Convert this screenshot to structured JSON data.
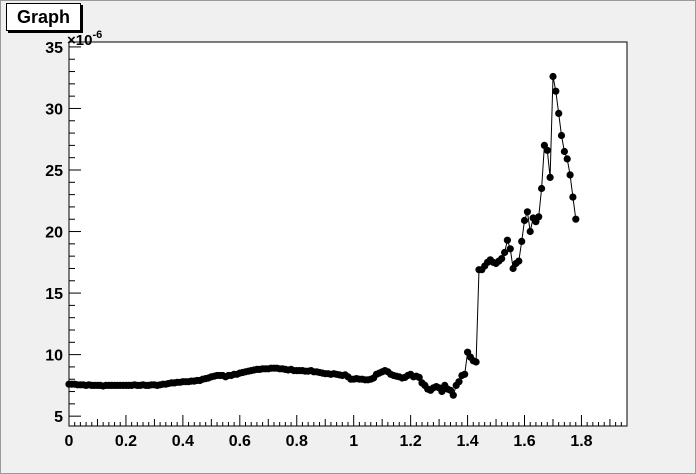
{
  "window": {
    "title": "Graph"
  },
  "chart_data": {
    "type": "line",
    "title": "Graph",
    "xlim": [
      0,
      1.96
    ],
    "ylim": [
      4.2,
      35.4
    ],
    "y_multiplier_label": "×10",
    "y_multiplier_exp": "-6",
    "x_ticks": [
      0,
      0.2,
      0.4,
      0.6,
      0.8,
      1,
      1.2,
      1.4,
      1.6,
      1.8
    ],
    "x_tick_labels": [
      "0",
      "0.2",
      "0.4",
      "0.6",
      "0.8",
      "1",
      "1.2",
      "1.4",
      "1.6",
      "1.8"
    ],
    "y_ticks": [
      5,
      10,
      15,
      20,
      25,
      30,
      35
    ],
    "y_tick_labels": [
      "5",
      "10",
      "15",
      "20",
      "25",
      "30",
      "35"
    ],
    "grid": false,
    "marker": "filled-circle",
    "colors": {
      "line": "#000000",
      "marker": "#000000",
      "frame": "#000000",
      "plot_bg": "#ffffff",
      "canvas_bg": "#f0f0f0"
    },
    "series": [
      {
        "x": [
          0.0,
          0.01,
          0.02,
          0.03,
          0.04,
          0.05,
          0.06,
          0.07,
          0.08,
          0.09,
          0.1,
          0.11,
          0.12,
          0.13,
          0.14,
          0.15,
          0.16,
          0.17,
          0.18,
          0.19,
          0.2,
          0.21,
          0.22,
          0.23,
          0.24,
          0.25,
          0.26,
          0.27,
          0.28,
          0.29,
          0.3,
          0.31,
          0.32,
          0.33,
          0.34,
          0.35,
          0.36,
          0.37,
          0.38,
          0.39,
          0.4,
          0.41,
          0.42,
          0.43,
          0.44,
          0.45,
          0.46,
          0.47,
          0.48,
          0.49,
          0.5,
          0.51,
          0.52,
          0.53,
          0.54,
          0.55,
          0.56,
          0.57,
          0.58,
          0.59,
          0.6,
          0.61,
          0.62,
          0.63,
          0.64,
          0.65,
          0.66,
          0.67,
          0.68,
          0.69,
          0.7,
          0.71,
          0.72,
          0.73,
          0.74,
          0.75,
          0.76,
          0.77,
          0.78,
          0.79,
          0.8,
          0.81,
          0.82,
          0.83,
          0.84,
          0.85,
          0.86,
          0.87,
          0.88,
          0.89,
          0.9,
          0.91,
          0.92,
          0.93,
          0.94,
          0.95,
          0.96,
          0.97,
          0.98,
          0.99,
          1.0,
          1.01,
          1.02,
          1.03,
          1.04,
          1.05,
          1.06,
          1.07,
          1.08,
          1.09,
          1.1,
          1.11,
          1.12,
          1.13,
          1.14,
          1.15,
          1.16,
          1.17,
          1.18,
          1.19,
          1.2,
          1.21,
          1.22,
          1.23,
          1.24,
          1.25,
          1.26,
          1.27,
          1.28,
          1.29,
          1.3,
          1.31,
          1.32,
          1.33,
          1.34,
          1.35,
          1.36,
          1.37,
          1.38,
          1.39,
          1.4,
          1.41,
          1.42,
          1.43,
          1.44,
          1.45,
          1.46,
          1.47,
          1.48,
          1.49,
          1.5,
          1.51,
          1.52,
          1.53,
          1.54,
          1.55,
          1.56,
          1.57,
          1.58,
          1.59,
          1.6,
          1.61,
          1.62,
          1.63,
          1.64,
          1.65,
          1.66,
          1.67,
          1.68,
          1.69,
          1.7,
          1.71,
          1.72,
          1.73,
          1.74,
          1.75,
          1.76,
          1.77,
          1.78
        ],
        "y": [
          7.6,
          7.6,
          7.6,
          7.55,
          7.55,
          7.55,
          7.5,
          7.55,
          7.5,
          7.5,
          7.5,
          7.5,
          7.45,
          7.5,
          7.5,
          7.5,
          7.5,
          7.5,
          7.5,
          7.5,
          7.5,
          7.5,
          7.5,
          7.55,
          7.5,
          7.5,
          7.55,
          7.5,
          7.5,
          7.55,
          7.55,
          7.5,
          7.55,
          7.6,
          7.6,
          7.65,
          7.7,
          7.7,
          7.75,
          7.75,
          7.8,
          7.8,
          7.8,
          7.85,
          7.85,
          7.9,
          7.9,
          8.0,
          8.05,
          8.1,
          8.2,
          8.25,
          8.3,
          8.3,
          8.3,
          8.2,
          8.3,
          8.3,
          8.4,
          8.4,
          8.5,
          8.55,
          8.6,
          8.65,
          8.7,
          8.75,
          8.8,
          8.8,
          8.85,
          8.85,
          8.85,
          8.9,
          8.9,
          8.9,
          8.85,
          8.85,
          8.8,
          8.75,
          8.8,
          8.7,
          8.7,
          8.7,
          8.7,
          8.65,
          8.65,
          8.7,
          8.6,
          8.6,
          8.55,
          8.5,
          8.45,
          8.45,
          8.4,
          8.45,
          8.4,
          8.35,
          8.3,
          8.35,
          8.2,
          8.0,
          8.0,
          8.05,
          8.0,
          8.0,
          7.95,
          7.95,
          8.0,
          8.1,
          8.4,
          8.5,
          8.6,
          8.7,
          8.6,
          8.4,
          8.3,
          8.25,
          8.2,
          8.1,
          8.15,
          8.3,
          8.4,
          8.2,
          8.25,
          8.15,
          7.7,
          7.5,
          7.2,
          7.1,
          7.3,
          7.4,
          7.3,
          7.0,
          7.5,
          7.2,
          7.1,
          6.7,
          7.5,
          7.8,
          8.3,
          8.4,
          10.2,
          9.8,
          9.5,
          9.4,
          16.9,
          16.9,
          17.2,
          17.5,
          17.7,
          17.5,
          17.4,
          17.6,
          17.8,
          18.3,
          19.3,
          18.6,
          17.0,
          17.4,
          17.6,
          19.2,
          20.9,
          21.6,
          20.0,
          21.1,
          20.8,
          21.2,
          23.5,
          27.0,
          26.6,
          24.4,
          32.6,
          31.4,
          29.6,
          27.8,
          26.5,
          25.9,
          24.6,
          22.8,
          21.0
        ]
      }
    ]
  }
}
